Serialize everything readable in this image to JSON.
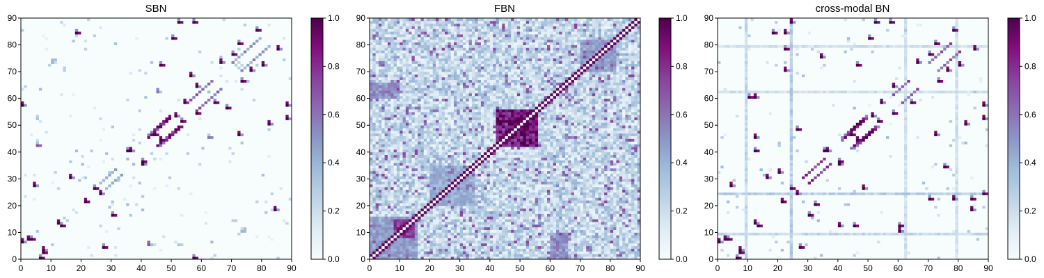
{
  "chart_data": [
    {
      "type": "heatmap",
      "title": "SBN",
      "x_ticks": [
        0,
        10,
        20,
        30,
        40,
        50,
        60,
        70,
        80,
        90
      ],
      "y_ticks": [
        0,
        10,
        20,
        30,
        40,
        50,
        60,
        70,
        80,
        90
      ],
      "xlim": [
        0,
        90
      ],
      "ylim": [
        0,
        90
      ],
      "colorbar": {
        "ticks": [
          "0.0",
          "0.2",
          "0.4",
          "0.6",
          "0.8",
          "1.0"
        ],
        "range": [
          0,
          1
        ],
        "colormap": "BuPu"
      },
      "pattern": "sparse",
      "diag_bands": [
        [
          40,
          44,
          50,
          1.0
        ],
        [
          47,
          42,
          50,
          1.0
        ],
        [
          52,
          55,
          60,
          0.8
        ],
        [
          59,
          57,
          64,
          0.7
        ],
        [
          68,
          70,
          80,
          0.6
        ],
        [
          20,
          26,
          32,
          0.5
        ]
      ],
      "points": [
        [
          57,
          88,
          1
        ],
        [
          78,
          85,
          1
        ],
        [
          72,
          80,
          1
        ],
        [
          70,
          76,
          1
        ],
        [
          73,
          66,
          1
        ],
        [
          64,
          58,
          1
        ],
        [
          68,
          56,
          1
        ],
        [
          58,
          54,
          1
        ],
        [
          53,
          51,
          1
        ],
        [
          44,
          46,
          1
        ],
        [
          40,
          36,
          1
        ],
        [
          30,
          16,
          1
        ],
        [
          27,
          4,
          1
        ],
        [
          24,
          26,
          1
        ],
        [
          21,
          21,
          1
        ],
        [
          18,
          84,
          1
        ],
        [
          13,
          12,
          1
        ],
        [
          7,
          2,
          1
        ],
        [
          6,
          0,
          1
        ],
        [
          3,
          7,
          1
        ],
        [
          57,
          0,
          1
        ],
        [
          52,
          88,
          1
        ],
        [
          50,
          82,
          1
        ],
        [
          46,
          72,
          1
        ],
        [
          35,
          40,
          1
        ],
        [
          62,
          45,
          0.6
        ],
        [
          73,
          10,
          0.4
        ],
        [
          5,
          42,
          0.7
        ]
      ]
    },
    {
      "type": "heatmap",
      "title": "FBN",
      "x_ticks": [
        0,
        10,
        20,
        30,
        40,
        50,
        60,
        70,
        80,
        90
      ],
      "y_ticks": [
        0,
        10,
        20,
        30,
        40,
        50,
        60,
        70,
        80,
        90
      ],
      "xlim": [
        0,
        90
      ],
      "ylim": [
        0,
        90
      ],
      "colorbar": {
        "ticks": [
          "0.0",
          "0.2",
          "0.4",
          "0.6",
          "0.8",
          "1.0"
        ],
        "range": [
          0,
          1
        ],
        "colormap": "BuPu"
      },
      "pattern": "dense",
      "blocks": [
        [
          42,
          56,
          42,
          56,
          0.85
        ],
        [
          0,
          16,
          0,
          16,
          0.45
        ],
        [
          8,
          15,
          8,
          15,
          0.75
        ],
        [
          20,
          35,
          20,
          35,
          0.4
        ],
        [
          70,
          82,
          70,
          82,
          0.45
        ],
        [
          60,
          66,
          0,
          10,
          0.5
        ],
        [
          0,
          10,
          60,
          66,
          0.5
        ]
      ],
      "diag_bands": [],
      "points": []
    },
    {
      "type": "heatmap",
      "title": "cross-modal BN",
      "x_ticks": [
        0,
        10,
        20,
        30,
        40,
        50,
        60,
        70,
        80,
        90
      ],
      "y_ticks": [
        0,
        10,
        20,
        30,
        40,
        50,
        60,
        70,
        80,
        90
      ],
      "xlim": [
        0,
        90
      ],
      "ylim": [
        0,
        90
      ],
      "colorbar": {
        "ticks": [
          "0.0",
          "0.2",
          "0.4",
          "0.6",
          "0.8",
          "1.0"
        ],
        "range": [
          0,
          1
        ],
        "colormap": "BuPu"
      },
      "pattern": "sparse",
      "stripes": [
        [
          9,
          0.25
        ],
        [
          24,
          0.3
        ],
        [
          62,
          0.2
        ],
        [
          79,
          0.2
        ]
      ],
      "diag_bands": [
        [
          42,
          44,
          50,
          1.0
        ],
        [
          46,
          41,
          49,
          1.0
        ],
        [
          20,
          28,
          36,
          0.9
        ],
        [
          56,
          58,
          64,
          0.8
        ],
        [
          66,
          70,
          78,
          0.8
        ]
      ],
      "points": [
        [
          57,
          88,
          1
        ],
        [
          78,
          85,
          1
        ],
        [
          72,
          80,
          1
        ],
        [
          70,
          76,
          1
        ],
        [
          73,
          66,
          1
        ],
        [
          64,
          58,
          1
        ],
        [
          58,
          54,
          1
        ],
        [
          53,
          51,
          1
        ],
        [
          44,
          46,
          1
        ],
        [
          40,
          36,
          1
        ],
        [
          30,
          16,
          1
        ],
        [
          27,
          4,
          1
        ],
        [
          24,
          26,
          1
        ],
        [
          21,
          21,
          1
        ],
        [
          18,
          84,
          1
        ],
        [
          13,
          12,
          1
        ],
        [
          7,
          2,
          1
        ],
        [
          6,
          0,
          1
        ],
        [
          3,
          7,
          1
        ],
        [
          52,
          88,
          1
        ],
        [
          50,
          82,
          1
        ],
        [
          46,
          72,
          1
        ],
        [
          35,
          40,
          1
        ],
        [
          88,
          24,
          1
        ],
        [
          84,
          22,
          1
        ],
        [
          75,
          34,
          1
        ],
        [
          70,
          22,
          1
        ],
        [
          60,
          12,
          1
        ],
        [
          45,
          12,
          1
        ],
        [
          32,
          20,
          1
        ],
        [
          12,
          40,
          1
        ],
        [
          10,
          60,
          1
        ],
        [
          22,
          78,
          1
        ],
        [
          26,
          48,
          1
        ],
        [
          90,
          52,
          1
        ]
      ]
    }
  ]
}
